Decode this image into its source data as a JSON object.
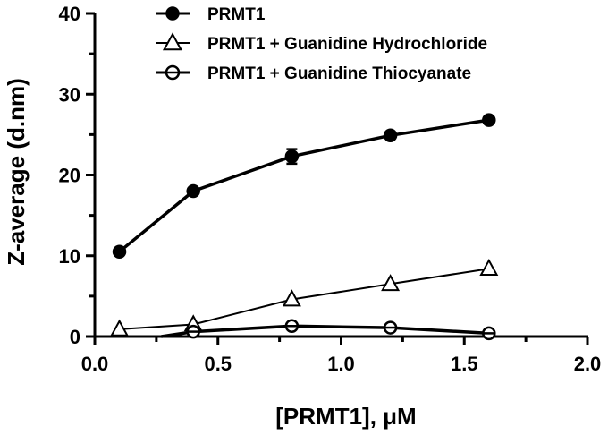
{
  "chart_data": {
    "type": "line",
    "title": "",
    "xlabel": "[PRMT1], μM",
    "ylabel": "Z-average (d.nm)",
    "xlim": [
      0.0,
      2.0
    ],
    "ylim": [
      0,
      40
    ],
    "xticks": [
      "0.0",
      "0.5",
      "1.0",
      "1.5",
      "2.0"
    ],
    "yticks": [
      "0",
      "10",
      "20",
      "30",
      "40"
    ],
    "grid": false,
    "legend_position": "top-right",
    "series": [
      {
        "name": "PRMT1",
        "marker": "filled-circle",
        "x": [
          0.1,
          0.4,
          0.8,
          1.2,
          1.6
        ],
        "y": [
          10.5,
          18.0,
          22.3,
          24.9,
          26.8
        ],
        "error": [
          0,
          0,
          0.9,
          0,
          0
        ]
      },
      {
        "name": "PRMT1 + Guanidine Hydrochloride",
        "marker": "open-triangle",
        "x": [
          0.1,
          0.4,
          0.8,
          1.2,
          1.6
        ],
        "y": [
          0.9,
          1.5,
          4.6,
          6.5,
          8.4
        ]
      },
      {
        "name": "PRMT1 + Guanidine Thiocyanate",
        "marker": "open-circle-bar",
        "x": [
          0.4,
          0.8,
          1.2,
          1.6
        ],
        "y": [
          0.6,
          1.3,
          1.1,
          0.4
        ]
      }
    ]
  }
}
